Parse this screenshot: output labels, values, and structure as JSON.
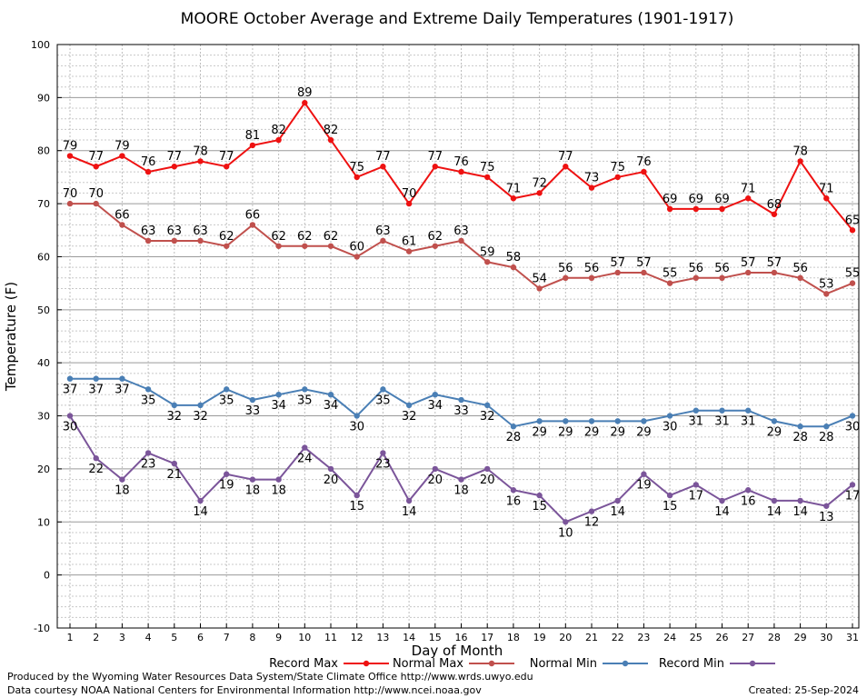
{
  "chart_data": {
    "type": "line",
    "title": "MOORE October Average and Extreme Daily Temperatures (1901-1917)",
    "xlabel": "Day of Month",
    "ylabel": "Temperature (F)",
    "ylim": [
      -10,
      100
    ],
    "yticks": [
      -10,
      0,
      10,
      20,
      30,
      40,
      50,
      60,
      70,
      80,
      90,
      100
    ],
    "x": [
      1,
      2,
      3,
      4,
      5,
      6,
      7,
      8,
      9,
      10,
      11,
      12,
      13,
      14,
      15,
      16,
      17,
      18,
      19,
      20,
      21,
      22,
      23,
      24,
      25,
      26,
      27,
      28,
      29,
      30,
      31
    ],
    "grid": true,
    "legend_position": "bottom",
    "series": [
      {
        "name": "Record Max",
        "color": "#ee1111",
        "label_pos": "above",
        "values": [
          79,
          77,
          79,
          76,
          77,
          78,
          77,
          81,
          82,
          89,
          82,
          75,
          77,
          70,
          77,
          76,
          75,
          71,
          72,
          77,
          73,
          75,
          76,
          69,
          69,
          69,
          71,
          68,
          78,
          71,
          65
        ]
      },
      {
        "name": "Normal Max",
        "color": "#c0504d",
        "label_pos": "above",
        "values": [
          70,
          70,
          66,
          63,
          63,
          63,
          62,
          66,
          62,
          62,
          62,
          60,
          63,
          61,
          62,
          63,
          59,
          58,
          54,
          56,
          56,
          57,
          57,
          55,
          56,
          56,
          57,
          57,
          56,
          53,
          55
        ]
      },
      {
        "name": "Normal Min",
        "color": "#4a7fb5",
        "label_pos": "below",
        "values": [
          37,
          37,
          37,
          35,
          32,
          32,
          35,
          33,
          34,
          35,
          34,
          30,
          35,
          32,
          34,
          33,
          32,
          28,
          29,
          29,
          29,
          29,
          29,
          30,
          31,
          31,
          31,
          29,
          28,
          28,
          30
        ]
      },
      {
        "name": "Record Min",
        "color": "#7b559a",
        "label_pos": "below",
        "values": [
          30,
          22,
          18,
          23,
          21,
          14,
          19,
          18,
          18,
          24,
          20,
          15,
          23,
          14,
          20,
          18,
          20,
          16,
          15,
          10,
          12,
          14,
          19,
          15,
          17,
          14,
          16,
          14,
          14,
          13,
          17
        ]
      }
    ]
  },
  "footer": {
    "line1": "Produced by the Wyoming Water Resources Data System/State Climate Office http://www.wrds.uwyo.edu",
    "line2": "Data courtesy NOAA National Centers for Environmental Information http://www.ncei.noaa.gov",
    "created": "Created:  25-Sep-2024"
  }
}
